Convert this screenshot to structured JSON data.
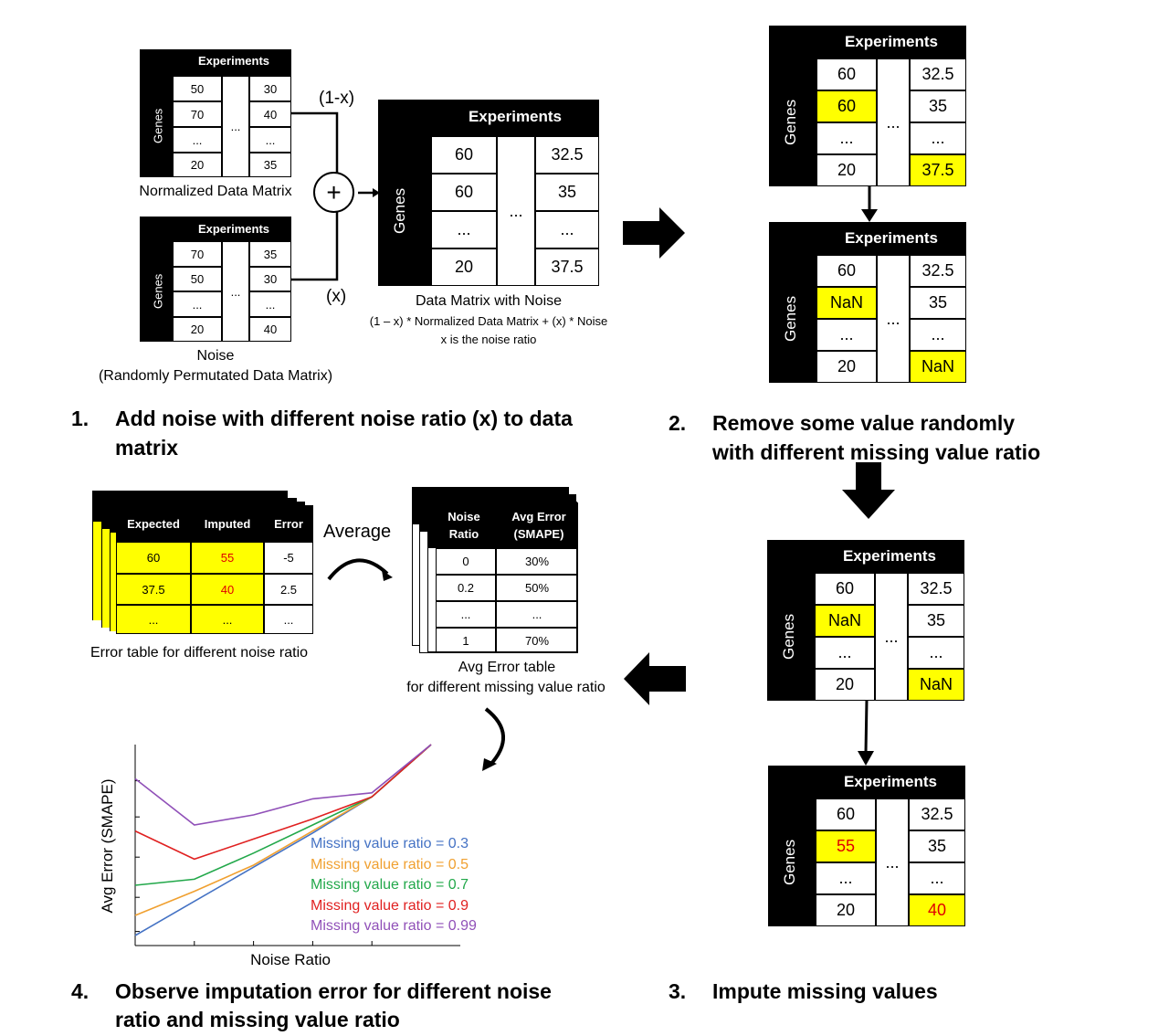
{
  "matrix_normalized": {
    "header": "Experiments",
    "side": "Genes",
    "rows": [
      [
        "50",
        "30"
      ],
      [
        "70",
        "40"
      ],
      [
        "...",
        "..."
      ],
      [
        "20",
        "35"
      ]
    ],
    "middle": "...",
    "caption": "Normalized Data Matrix"
  },
  "matrix_noise": {
    "header": "Experiments",
    "side": "Genes",
    "rows": [
      [
        "70",
        "35"
      ],
      [
        "50",
        "30"
      ],
      [
        "...",
        "..."
      ],
      [
        "20",
        "40"
      ]
    ],
    "middle": "...",
    "caption_line1": "Noise",
    "caption_line2": "(Randomly Permutated Data Matrix)"
  },
  "combine": {
    "plus": "+",
    "label_top": "(1-x)",
    "label_bottom": "(x)"
  },
  "matrix_with_noise": {
    "header": "Experiments",
    "side": "Genes",
    "rows": [
      [
        "60",
        "32.5"
      ],
      [
        "60",
        "35"
      ],
      [
        "...",
        "..."
      ],
      [
        "20",
        "37.5"
      ]
    ],
    "middle": "...",
    "caption_line1": "Data Matrix with Noise",
    "caption_line2": "(1 – x) * Normalized  Data Matrix + (x) * Noise",
    "caption_line3": "x is the noise ratio"
  },
  "matrix_step2_top": {
    "header": "Experiments",
    "side": "Genes",
    "rows": [
      [
        "60",
        "32.5"
      ],
      [
        "60",
        "35"
      ],
      [
        "...",
        "..."
      ],
      [
        "20",
        "37.5"
      ]
    ],
    "middle": "..."
  },
  "matrix_step2_bottom": {
    "header": "Experiments",
    "side": "Genes",
    "rows": [
      [
        "60",
        "32.5"
      ],
      [
        "NaN",
        "35"
      ],
      [
        "...",
        "..."
      ],
      [
        "20",
        "NaN"
      ]
    ],
    "middle": "..."
  },
  "matrix_step3_top": {
    "header": "Experiments",
    "side": "Genes",
    "rows": [
      [
        "60",
        "32.5"
      ],
      [
        "NaN",
        "35"
      ],
      [
        "...",
        "..."
      ],
      [
        "20",
        "NaN"
      ]
    ],
    "middle": "..."
  },
  "matrix_step3_bottom": {
    "header": "Experiments",
    "side": "Genes",
    "rows": [
      [
        "60",
        "32.5"
      ],
      [
        "55",
        "35"
      ],
      [
        "...",
        "..."
      ],
      [
        "20",
        "40"
      ]
    ],
    "middle": "..."
  },
  "steps": {
    "s1_num": "1.",
    "s1_line1": "Add noise with different noise ratio (x) to data",
    "s1_line2": "matrix",
    "s2_num": "2.",
    "s2_line1": "Remove some value randomly",
    "s2_line2": "with different missing value ratio",
    "s3_num": "3.",
    "s3_line1": "Impute missing values",
    "s4_num": "4.",
    "s4_line1": "Observe imputation error for different noise",
    "s4_line2": "ratio and missing value ratio"
  },
  "error_table": {
    "headers": [
      "Expected",
      "Imputed",
      "Error"
    ],
    "rows": [
      [
        "60",
        "55",
        "-5"
      ],
      [
        "37.5",
        "40",
        "2.5"
      ],
      [
        "...",
        "...",
        "..."
      ]
    ],
    "caption": "Error table for different noise ratio",
    "highlight_color": "#ffff00",
    "imputed_color": "#e00000"
  },
  "average_label": "Average",
  "avg_table": {
    "headers": [
      "Noise Ratio",
      "Avg Error (SMAPE)"
    ],
    "rows": [
      [
        "0",
        "30%"
      ],
      [
        "0.2",
        "50%"
      ],
      [
        "...",
        "..."
      ],
      [
        "1",
        "70%"
      ]
    ],
    "caption_line1": "Avg Error table",
    "caption_line2": "for different missing value ratio"
  },
  "chart_data": {
    "type": "line",
    "xlabel": "Noise Ratio",
    "ylabel": "Avg Error (SMAPE)",
    "x": [
      0,
      1,
      2,
      3,
      4,
      5
    ],
    "series": [
      {
        "name": "Missing value ratio = 0.3",
        "color": "#4472c4",
        "values": [
          5,
          22,
          39,
          56,
          74,
          100
        ]
      },
      {
        "name": "Missing value ratio = 0.5",
        "color": "#f0a030",
        "values": [
          15,
          27,
          40,
          57,
          74,
          100
        ]
      },
      {
        "name": "Missing value ratio = 0.7",
        "color": "#22a84a",
        "values": [
          30,
          33,
          46,
          60,
          74,
          100
        ]
      },
      {
        "name": "Missing value ratio = 0.9",
        "color": "#e02020",
        "values": [
          57,
          43,
          53,
          63,
          74,
          100
        ]
      },
      {
        "name": "Missing value ratio = 0.99",
        "color": "#9050b8",
        "values": [
          83,
          60,
          65,
          73,
          76,
          100
        ]
      }
    ]
  }
}
